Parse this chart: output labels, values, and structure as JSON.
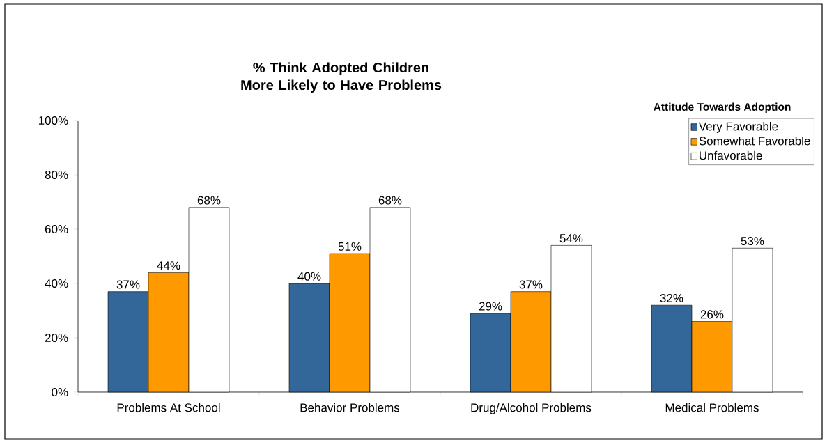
{
  "chart_data": {
    "type": "bar",
    "title": "% Think Adopted Children More Likely to Have Problems",
    "categories": [
      "Problems At School",
      "Behavior Problems",
      "Drug/Alcohol Problems",
      "Medical Problems"
    ],
    "series": [
      {
        "name": "Very Favorable",
        "color": "#336699",
        "values": [
          37,
          40,
          29,
          32
        ],
        "value_labels": [
          "37%",
          "40%",
          "29%",
          "32%"
        ]
      },
      {
        "name": "Somewhat Favorable",
        "color": "#ff9900",
        "values": [
          44,
          51,
          37,
          26
        ],
        "value_labels": [
          "44%",
          "51%",
          "37%",
          "26%"
        ]
      },
      {
        "name": "Unfavorable",
        "color": "#ffffff",
        "values": [
          68,
          68,
          54,
          53
        ],
        "value_labels": [
          "68%",
          "68%",
          "54%",
          "53%"
        ]
      }
    ],
    "legend_title": "Attitude Towards Adoption",
    "legend": "top right",
    "grid": false,
    "ylim": [
      0,
      100
    ],
    "yticks": [
      {
        "value": 0,
        "label": "0%"
      },
      {
        "value": 20,
        "label": "20%"
      },
      {
        "value": 40,
        "label": "40%"
      },
      {
        "value": 60,
        "label": "60%"
      },
      {
        "value": 80,
        "label": "80%"
      },
      {
        "value": 100,
        "label": "100%"
      }
    ]
  }
}
